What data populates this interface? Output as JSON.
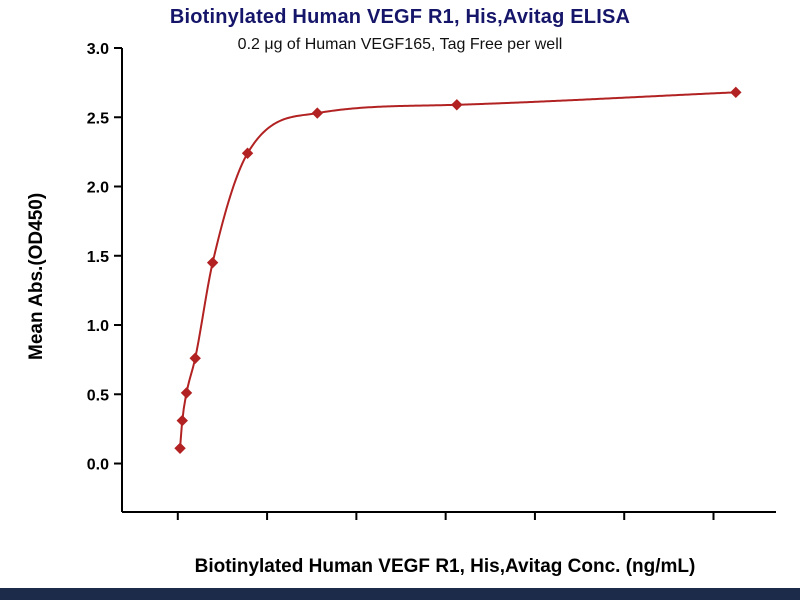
{
  "page": {
    "background": "#FFFFFF",
    "footer_bar_color": "#1C2B4A"
  },
  "chart_data": {
    "type": "line",
    "title": "Biotinylated Human VEGF R1, His,Avitag ELISA",
    "subtitle": "0.2 μg of Human VEGF165, Tag Free per well",
    "xlabel": "Biotinylated Human VEGF R1, His,Avitag Conc. (ng/mL)",
    "ylabel": "Mean Abs.(OD450)",
    "x": [
      1,
      2,
      3.9,
      7.8,
      15.6,
      31.25,
      62.5,
      125,
      250
    ],
    "y": [
      0.11,
      0.31,
      0.51,
      0.76,
      1.45,
      2.24,
      2.53,
      2.59,
      2.68
    ],
    "x_ticks": [
      0,
      40,
      80,
      120,
      160,
      200,
      240
    ],
    "y_ticks": [
      0.0,
      0.5,
      1.0,
      1.5,
      2.0,
      2.5,
      3.0
    ],
    "xlim": [
      -25,
      268
    ],
    "ylim": [
      -0.35,
      3.0
    ],
    "line_color": "#B22222",
    "marker": "diamond",
    "marker_size": 5,
    "axis_color": "#000000",
    "title_color": "#15156A",
    "grid": false,
    "legend": "none"
  }
}
